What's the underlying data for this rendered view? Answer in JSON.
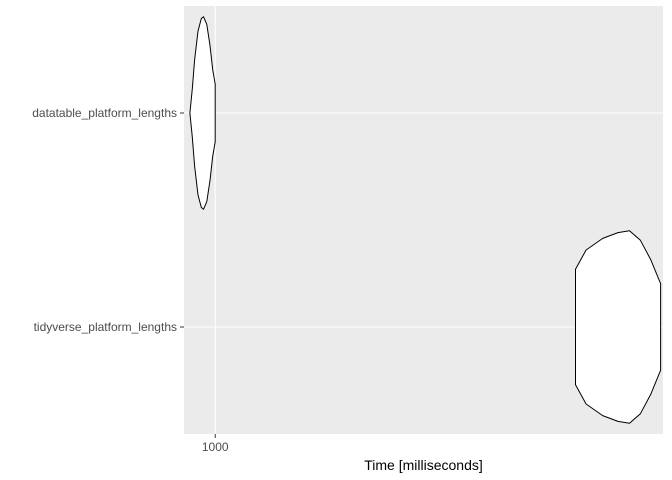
{
  "chart_data": {
    "type": "violin",
    "orientation": "horizontal",
    "xlabel": "Time [milliseconds]",
    "ylabel": "",
    "x_ticks": [
      {
        "value": 1000,
        "label": "1000"
      }
    ],
    "x_scale": "log",
    "xlim": [
      860,
      8700
    ],
    "grid": true,
    "legend": "none",
    "categories": [
      "datatable_platform_lengths",
      "tidyverse_platform_lengths"
    ],
    "series": [
      {
        "category": "datatable_platform_lengths",
        "min": 885,
        "max": 1000,
        "peak": 940,
        "distribution": [
          [
            885,
            0.0
          ],
          [
            895,
            0.25
          ],
          [
            905,
            0.55
          ],
          [
            920,
            0.85
          ],
          [
            935,
            0.98
          ],
          [
            945,
            1.0
          ],
          [
            960,
            0.92
          ],
          [
            975,
            0.7
          ],
          [
            988,
            0.45
          ],
          [
            1000,
            0.3
          ]
        ]
      },
      {
        "category": "tidyverse_platform_lengths",
        "min": 5700,
        "max": 8600,
        "peak": 7400,
        "distribution": [
          [
            5700,
            0.6
          ],
          [
            6000,
            0.8
          ],
          [
            6500,
            0.92
          ],
          [
            7000,
            0.98
          ],
          [
            7400,
            1.0
          ],
          [
            7800,
            0.9
          ],
          [
            8200,
            0.7
          ],
          [
            8600,
            0.45
          ]
        ]
      }
    ]
  },
  "colors": {
    "panel_bg": "#ebebeb",
    "grid_major": "#ffffff",
    "violin_fill": "#ffffff",
    "violin_stroke": "#000000",
    "tick_text": "#4d4d4d"
  }
}
